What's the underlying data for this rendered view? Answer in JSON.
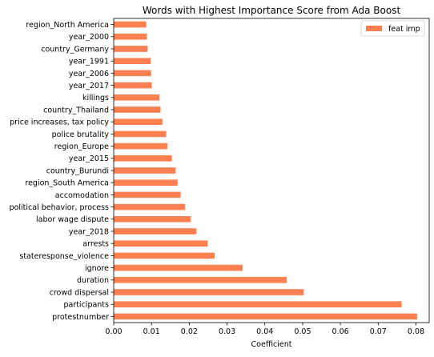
{
  "chart_data": {
    "type": "bar",
    "orientation": "horizontal",
    "title": "Words with Highest Importance Score from Ada Boost",
    "xlabel": "Coefficient",
    "ylabel": "",
    "xlim": [
      0,
      0.0835
    ],
    "xticks": [
      0.0,
      0.01,
      0.02,
      0.03,
      0.04,
      0.05,
      0.06,
      0.07,
      0.08
    ],
    "xtick_labels": [
      "0.00",
      "0.01",
      "0.02",
      "0.03",
      "0.04",
      "0.05",
      "0.06",
      "0.07",
      "0.08"
    ],
    "grid": false,
    "legend_position": "top-right",
    "bar_color": "#ff7f50",
    "categories": [
      "protestnumber",
      "participants",
      "crowd dispersal",
      "duration",
      "ignore",
      "stateresponse_violence",
      "arrests",
      "year_2018",
      "labor wage dispute",
      "political behavior, process",
      "accomodation",
      "region_South America",
      "country_Burundi",
      "year_2015",
      "region_Europe",
      "police brutality",
      "price increases, tax policy",
      "country_Thailand",
      "killings",
      "year_2017",
      "year_2006",
      "year_1991",
      "country_Germany",
      "year_2000",
      "region_North America"
    ],
    "series": [
      {
        "name": "feat imp",
        "values": [
          0.0803,
          0.0762,
          0.0503,
          0.0458,
          0.0341,
          0.0267,
          0.0249,
          0.0219,
          0.0204,
          0.0189,
          0.0177,
          0.0169,
          0.0164,
          0.0154,
          0.0142,
          0.0139,
          0.0129,
          0.0124,
          0.0121,
          0.0101,
          0.0099,
          0.0098,
          0.009,
          0.0088,
          0.0086
        ]
      }
    ]
  }
}
